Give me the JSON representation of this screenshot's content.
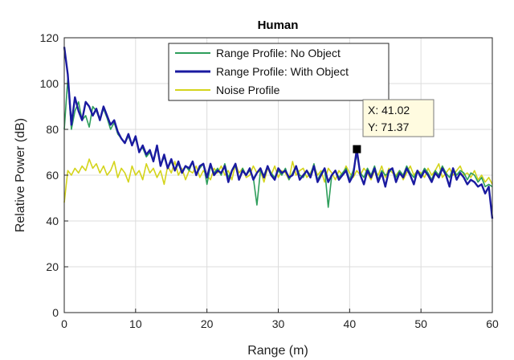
{
  "chart_data": {
    "type": "line",
    "title": "Human",
    "xlabel": "Range (m)",
    "ylabel": "Relative Power (dB)",
    "xlim": [
      0,
      60
    ],
    "ylim": [
      0,
      120
    ],
    "xticks": [
      0,
      10,
      20,
      30,
      40,
      50,
      60
    ],
    "yticks": [
      0,
      20,
      40,
      60,
      80,
      100,
      120
    ],
    "grid": true,
    "legend_position": "top-right",
    "series": [
      {
        "name": "Range Profile: No Object",
        "color": "#2e9e5b",
        "x": [
          0,
          0.5,
          1,
          1.5,
          2,
          2.5,
          3,
          3.5,
          4,
          4.5,
          5,
          5.5,
          6,
          6.5,
          7,
          7.5,
          8,
          8.5,
          9,
          9.5,
          10,
          10.5,
          11,
          11.5,
          12,
          12.5,
          13,
          13.5,
          14,
          14.5,
          15,
          15.5,
          16,
          16.5,
          17,
          17.5,
          18,
          18.5,
          19,
          19.5,
          20,
          20.5,
          21,
          21.5,
          22,
          22.5,
          23,
          23.5,
          24,
          24.5,
          25,
          25.5,
          26,
          26.5,
          27,
          27.5,
          28,
          28.5,
          29,
          29.5,
          30,
          30.5,
          31,
          31.5,
          32,
          32.5,
          33,
          33.5,
          34,
          34.5,
          35,
          35.5,
          36,
          36.5,
          37,
          37.5,
          38,
          38.5,
          39,
          39.5,
          40,
          40.5,
          41,
          41.5,
          42,
          42.5,
          43,
          43.5,
          44,
          44.5,
          45,
          45.5,
          46,
          46.5,
          47,
          47.5,
          48,
          48.5,
          49,
          49.5,
          50,
          50.5,
          51,
          51.5,
          52,
          52.5,
          53,
          53.5,
          54,
          54.5,
          55,
          55.5,
          56,
          56.5,
          57,
          57.5,
          58,
          58.5,
          59,
          59.5,
          60
        ],
        "y": [
          80,
          102,
          80,
          88,
          92,
          84,
          86,
          81,
          90,
          88,
          84,
          89,
          85,
          80,
          83,
          78,
          76,
          74,
          77,
          73,
          76,
          71,
          72,
          68,
          70,
          66,
          72,
          64,
          68,
          63,
          66,
          62,
          65,
          61,
          64,
          62,
          66,
          60,
          63,
          65,
          56,
          64,
          61,
          63,
          60,
          65,
          59,
          62,
          64,
          58,
          63,
          60,
          62,
          59,
          47,
          62,
          60,
          64,
          61,
          59,
          62,
          60,
          63,
          58,
          61,
          64,
          60,
          59,
          62,
          60,
          65,
          58,
          61,
          63,
          46,
          60,
          62,
          59,
          61,
          63,
          58,
          62,
          69,
          61,
          59,
          63,
          60,
          64,
          58,
          62,
          60,
          61,
          63,
          59,
          62,
          60,
          64,
          61,
          59,
          62,
          60,
          63,
          61,
          58,
          62,
          60,
          64,
          61,
          59,
          63,
          60,
          62,
          61,
          58,
          61,
          60,
          57,
          59,
          55,
          56,
          55
        ]
      },
      {
        "name": "Range Profile: With Object",
        "color": "#1a1aa0",
        "x": [
          0,
          0.5,
          1,
          1.5,
          2,
          2.5,
          3,
          3.5,
          4,
          4.5,
          5,
          5.5,
          6,
          6.5,
          7,
          7.5,
          8,
          8.5,
          9,
          9.5,
          10,
          10.5,
          11,
          11.5,
          12,
          12.5,
          13,
          13.5,
          14,
          14.5,
          15,
          15.5,
          16,
          16.5,
          17,
          17.5,
          18,
          18.5,
          19,
          19.5,
          20,
          20.5,
          21,
          21.5,
          22,
          22.5,
          23,
          23.5,
          24,
          24.5,
          25,
          25.5,
          26,
          26.5,
          27,
          27.5,
          28,
          28.5,
          29,
          29.5,
          30,
          30.5,
          31,
          31.5,
          32,
          32.5,
          33,
          33.5,
          34,
          34.5,
          35,
          35.5,
          36,
          36.5,
          37,
          37.5,
          38,
          38.5,
          39,
          39.5,
          40,
          40.5,
          41,
          41.5,
          42,
          42.5,
          43,
          43.5,
          44,
          44.5,
          45,
          45.5,
          46,
          46.5,
          47,
          47.5,
          48,
          48.5,
          49,
          49.5,
          50,
          50.5,
          51,
          51.5,
          52,
          52.5,
          53,
          53.5,
          54,
          54.5,
          55,
          55.5,
          56,
          56.5,
          57,
          57.5,
          58,
          58.5,
          59,
          59.5,
          60
        ],
        "y": [
          116,
          104,
          82,
          94,
          88,
          84,
          92,
          90,
          86,
          89,
          84,
          90,
          86,
          82,
          84,
          79,
          76,
          74,
          78,
          73,
          77,
          70,
          73,
          69,
          71,
          66,
          73,
          64,
          69,
          63,
          67,
          62,
          66,
          61,
          64,
          63,
          66,
          60,
          64,
          65,
          59,
          65,
          60,
          62,
          61,
          64,
          57,
          62,
          65,
          58,
          62,
          60,
          63,
          58,
          61,
          63,
          59,
          64,
          60,
          58,
          63,
          61,
          62,
          59,
          60,
          64,
          58,
          60,
          62,
          59,
          64,
          57,
          60,
          63,
          57,
          60,
          62,
          58,
          60,
          62,
          57,
          60,
          71.37,
          60,
          56,
          62,
          59,
          63,
          57,
          61,
          55,
          62,
          63,
          57,
          61,
          59,
          63,
          60,
          56,
          62,
          59,
          62,
          60,
          57,
          61,
          59,
          63,
          60,
          55,
          63,
          58,
          61,
          59,
          56,
          58,
          57,
          55,
          56,
          52,
          55,
          41
        ]
      },
      {
        "name": "Noise Profile",
        "color": "#d4d41c",
        "x": [
          0,
          0.5,
          1,
          1.5,
          2,
          2.5,
          3,
          3.5,
          4,
          4.5,
          5,
          5.5,
          6,
          6.5,
          7,
          7.5,
          8,
          8.5,
          9,
          9.5,
          10,
          10.5,
          11,
          11.5,
          12,
          12.5,
          13,
          13.5,
          14,
          14.5,
          15,
          15.5,
          16,
          16.5,
          17,
          17.5,
          18,
          18.5,
          19,
          19.5,
          20,
          20.5,
          21,
          21.5,
          22,
          22.5,
          23,
          23.5,
          24,
          24.5,
          25,
          25.5,
          26,
          26.5,
          27,
          27.5,
          28,
          28.5,
          29,
          29.5,
          30,
          30.5,
          31,
          31.5,
          32,
          32.5,
          33,
          33.5,
          34,
          34.5,
          35,
          35.5,
          36,
          36.5,
          37,
          37.5,
          38,
          38.5,
          39,
          39.5,
          40,
          40.5,
          41,
          41.5,
          42,
          42.5,
          43,
          43.5,
          44,
          44.5,
          45,
          45.5,
          46,
          46.5,
          47,
          47.5,
          48,
          48.5,
          49,
          49.5,
          50,
          50.5,
          51,
          51.5,
          52,
          52.5,
          53,
          53.5,
          54,
          54.5,
          55,
          55.5,
          56,
          56.5,
          57,
          57.5,
          58,
          58.5,
          59,
          59.5,
          60
        ],
        "y": [
          48,
          62,
          60,
          63,
          61,
          64,
          62,
          67,
          63,
          65,
          61,
          64,
          60,
          62,
          66,
          59,
          63,
          61,
          57,
          64,
          60,
          62,
          58,
          65,
          61,
          63,
          59,
          62,
          56,
          64,
          61,
          66,
          60,
          63,
          58,
          62,
          61,
          64,
          59,
          62,
          60,
          58,
          63,
          61,
          64,
          60,
          62,
          58,
          65,
          61,
          63,
          59,
          60,
          64,
          61,
          62,
          57,
          63,
          60,
          64,
          59,
          62,
          61,
          58,
          66,
          60,
          62,
          63,
          59,
          61,
          64,
          60,
          62,
          57,
          63,
          61,
          58,
          62,
          60,
          64,
          61,
          59,
          62,
          60,
          63,
          61,
          58,
          62,
          60,
          64,
          59,
          63,
          61,
          60,
          62,
          58,
          61,
          64,
          60,
          62,
          61,
          59,
          63,
          60,
          62,
          65,
          59,
          61,
          63,
          60,
          62,
          64,
          60,
          61,
          59,
          62,
          58,
          60,
          57,
          59,
          56
        ]
      }
    ],
    "datatip": {
      "x": 41.02,
      "y": 71.37,
      "x_text": "X: 41.02",
      "y_text": "Y: 71.37"
    }
  }
}
